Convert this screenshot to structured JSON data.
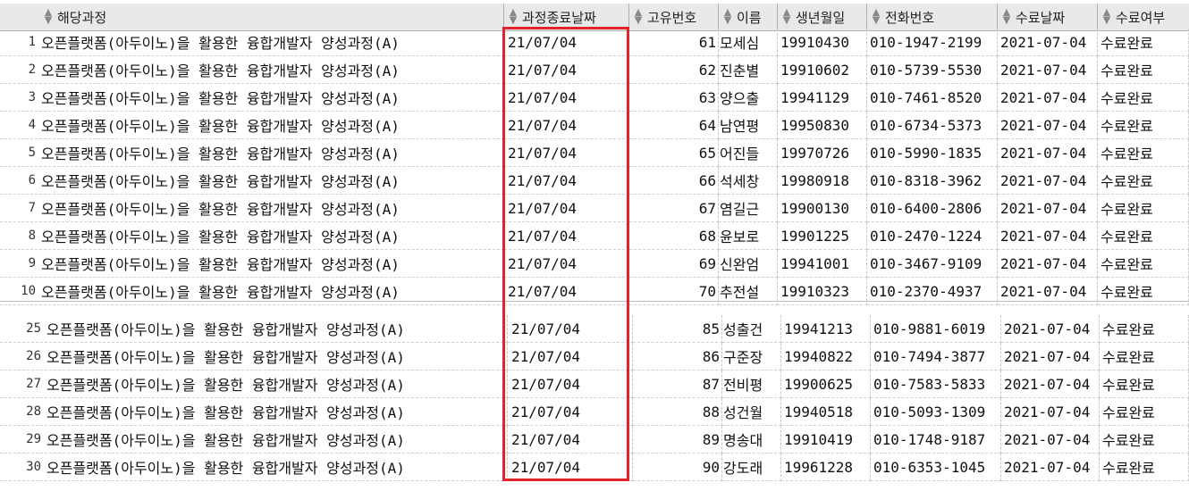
{
  "columns": [
    {
      "key": "course",
      "label": "해당과정"
    },
    {
      "key": "end",
      "label": "과정종료날짜"
    },
    {
      "key": "id",
      "label": "고유번호"
    },
    {
      "key": "name",
      "label": "이름"
    },
    {
      "key": "birth",
      "label": "생년월일"
    },
    {
      "key": "phone",
      "label": "전화번호"
    },
    {
      "key": "date",
      "label": "수료날짜"
    },
    {
      "key": "status",
      "label": "수료여부"
    }
  ],
  "group1": [
    {
      "num": "1",
      "course": "오픈플랫폼(아두이노)을 활용한 융합개발자 양성과정(A)",
      "end": "21/07/04",
      "id": "61",
      "name": "모세심",
      "birth": "19910430",
      "phone": "010-1947-2199",
      "date": "2021-07-04",
      "status": "수료완료"
    },
    {
      "num": "2",
      "course": "오픈플랫폼(아두이노)을 활용한 융합개발자 양성과정(A)",
      "end": "21/07/04",
      "id": "62",
      "name": "진춘별",
      "birth": "19910602",
      "phone": "010-5739-5530",
      "date": "2021-07-04",
      "status": "수료완료"
    },
    {
      "num": "3",
      "course": "오픈플랫폼(아두이노)을 활용한 융합개발자 양성과정(A)",
      "end": "21/07/04",
      "id": "63",
      "name": "양으출",
      "birth": "19941129",
      "phone": "010-7461-8520",
      "date": "2021-07-04",
      "status": "수료완료"
    },
    {
      "num": "4",
      "course": "오픈플랫폼(아두이노)을 활용한 융합개발자 양성과정(A)",
      "end": "21/07/04",
      "id": "64",
      "name": "남연평",
      "birth": "19950830",
      "phone": "010-6734-5373",
      "date": "2021-07-04",
      "status": "수료완료"
    },
    {
      "num": "5",
      "course": "오픈플랫폼(아두이노)을 활용한 융합개발자 양성과정(A)",
      "end": "21/07/04",
      "id": "65",
      "name": "어진들",
      "birth": "19970726",
      "phone": "010-5990-1835",
      "date": "2021-07-04",
      "status": "수료완료"
    },
    {
      "num": "6",
      "course": "오픈플랫폼(아두이노)을 활용한 융합개발자 양성과정(A)",
      "end": "21/07/04",
      "id": "66",
      "name": "석세창",
      "birth": "19980918",
      "phone": "010-8318-3962",
      "date": "2021-07-04",
      "status": "수료완료"
    },
    {
      "num": "7",
      "course": "오픈플랫폼(아두이노)을 활용한 융합개발자 양성과정(A)",
      "end": "21/07/04",
      "id": "67",
      "name": "염길근",
      "birth": "19900130",
      "phone": "010-6400-2806",
      "date": "2021-07-04",
      "status": "수료완료"
    },
    {
      "num": "8",
      "course": "오픈플랫폼(아두이노)을 활용한 융합개발자 양성과정(A)",
      "end": "21/07/04",
      "id": "68",
      "name": "윤보로",
      "birth": "19901225",
      "phone": "010-2470-1224",
      "date": "2021-07-04",
      "status": "수료완료"
    },
    {
      "num": "9",
      "course": "오픈플랫폼(아두이노)을 활용한 융합개발자 양성과정(A)",
      "end": "21/07/04",
      "id": "69",
      "name": "신완엄",
      "birth": "19941001",
      "phone": "010-3467-9109",
      "date": "2021-07-04",
      "status": "수료완료"
    },
    {
      "num": "10",
      "course": "오픈플랫폼(아두이노)을 활용한 융합개발자 양성과정(A)",
      "end": "21/07/04",
      "id": "70",
      "name": "추전설",
      "birth": "19910323",
      "phone": "010-2370-4937",
      "date": "2021-07-04",
      "status": "수료완료"
    }
  ],
  "group2": [
    {
      "num": "25",
      "course": "오픈플랫폼(아두이노)을 활용한 융합개발자 양성과정(A)",
      "end": "21/07/04",
      "id": "85",
      "name": "성출건",
      "birth": "19941213",
      "phone": "010-9881-6019",
      "date": "2021-07-04",
      "status": "수료완료"
    },
    {
      "num": "26",
      "course": "오픈플랫폼(아두이노)을 활용한 융합개발자 양성과정(A)",
      "end": "21/07/04",
      "id": "86",
      "name": "구준장",
      "birth": "19940822",
      "phone": "010-7494-3877",
      "date": "2021-07-04",
      "status": "수료완료"
    },
    {
      "num": "27",
      "course": "오픈플랫폼(아두이노)을 활용한 융합개발자 양성과정(A)",
      "end": "21/07/04",
      "id": "87",
      "name": "전비평",
      "birth": "19900625",
      "phone": "010-7583-5833",
      "date": "2021-07-04",
      "status": "수료완료"
    },
    {
      "num": "28",
      "course": "오픈플랫폼(아두이노)을 활용한 융합개발자 양성과정(A)",
      "end": "21/07/04",
      "id": "88",
      "name": "성건월",
      "birth": "19940518",
      "phone": "010-5093-1309",
      "date": "2021-07-04",
      "status": "수료완료"
    },
    {
      "num": "29",
      "course": "오픈플랫폼(아두이노)을 활용한 융합개발자 양성과정(A)",
      "end": "21/07/04",
      "id": "89",
      "name": "명송대",
      "birth": "19910419",
      "phone": "010-1748-9187",
      "date": "2021-07-04",
      "status": "수료완료"
    },
    {
      "num": "30",
      "course": "오픈플랫폼(아두이노)을 활용한 융합개발자 양성과정(A)",
      "end": "21/07/04",
      "id": "90",
      "name": "강도래",
      "birth": "19961228",
      "phone": "010-6353-1045",
      "date": "2021-07-04",
      "status": "수료완료"
    }
  ],
  "colors": {
    "highlight": "#e0242c",
    "header_bg": "#e9e9e9"
  },
  "icons": {
    "sort": "sort-arrows-icon"
  }
}
